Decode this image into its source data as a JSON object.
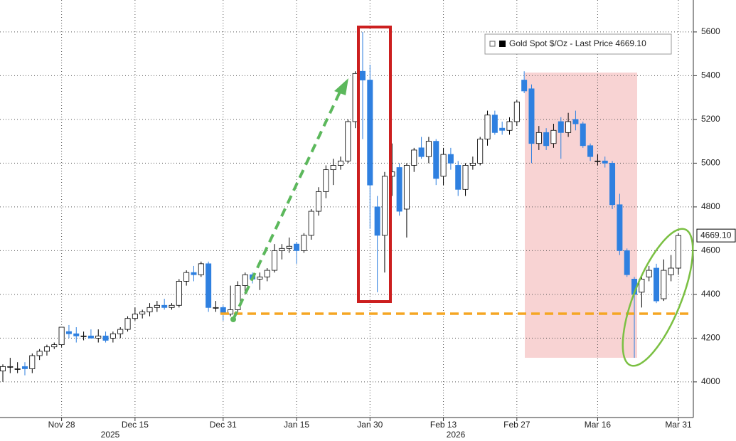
{
  "chart_data": {
    "type": "candlestick",
    "legend_label": "Gold Spot $/Oz - Last Price 4669.10",
    "last_price_label": "4669.10",
    "categories": [
      null,
      null,
      null,
      null,
      null,
      null,
      null,
      null,
      "Nov 28",
      null,
      null,
      null,
      null,
      null,
      null,
      null,
      null,
      null,
      "Dec 15",
      null,
      null,
      null,
      null,
      null,
      null,
      null,
      null,
      null,
      null,
      null,
      "Dec 31",
      null,
      null,
      null,
      null,
      null,
      null,
      null,
      null,
      null,
      "Jan 15",
      null,
      null,
      null,
      null,
      null,
      null,
      null,
      null,
      null,
      "Jan 30",
      null,
      null,
      null,
      null,
      null,
      null,
      null,
      null,
      null,
      "Feb 13",
      null,
      null,
      null,
      null,
      null,
      null,
      null,
      null,
      null,
      "Feb 27",
      null,
      null,
      null,
      null,
      null,
      null,
      null,
      null,
      null,
      null,
      "Mar 16",
      null,
      null,
      null,
      null,
      null,
      null,
      null,
      null,
      null,
      null,
      "Mar 31"
    ],
    "year_labels": [
      "2025",
      "2026"
    ],
    "up_color": "#ffffff",
    "down_color": "#2f80e0",
    "outline_color": "#000000",
    "series": [
      {
        "name": "Gold Spot $/Oz",
        "open": [
          4050,
          4070,
          4060,
          4070,
          4060,
          4120,
          4140,
          4160,
          4170,
          4230,
          4220,
          4210,
          4210,
          4200,
          4210,
          4200,
          4220,
          4240,
          4290,
          4310,
          4320,
          4340,
          4350,
          4340,
          4350,
          4460,
          4500,
          4490,
          4540,
          4340,
          4340,
          4310,
          4330,
          4440,
          4490,
          4470,
          4480,
          4510,
          4600,
          4610,
          4630,
          4600,
          4670,
          4780,
          4870,
          4970,
          4990,
          5010,
          5190,
          5420,
          5380,
          4800,
          4670,
          4940,
          4980,
          4790,
          4990,
          5070,
          5030,
          5100,
          4940,
          5040,
          4990,
          4880,
          4990,
          5000,
          5110,
          5220,
          5160,
          5150,
          5190,
          5380,
          5340,
          5090,
          5140,
          5090,
          5190,
          5140,
          5200,
          5180,
          5080,
          5010,
          5010,
          5000,
          4810,
          4600,
          4470,
          4410,
          4480,
          4520,
          4380,
          4490,
          4520
        ],
        "high": [
          4080,
          4110,
          4090,
          4090,
          4130,
          4150,
          4170,
          4180,
          4250,
          4260,
          4250,
          4230,
          4240,
          4240,
          4230,
          4230,
          4250,
          4300,
          4340,
          4330,
          4360,
          4370,
          4380,
          4360,
          4470,
          4510,
          4530,
          4550,
          4550,
          4370,
          4350,
          4440,
          4460,
          4500,
          4500,
          4500,
          4520,
          4630,
          4630,
          4660,
          4640,
          4680,
          4790,
          4890,
          4990,
          5020,
          5030,
          5200,
          5420,
          5600,
          5450,
          4850,
          4960,
          5090,
          5000,
          5000,
          5070,
          5120,
          5120,
          5110,
          5070,
          5070,
          5010,
          5000,
          5030,
          5120,
          5240,
          5240,
          5190,
          5210,
          5290,
          5420,
          5360,
          5170,
          5160,
          5180,
          5210,
          5230,
          5240,
          5190,
          5090,
          5040,
          5030,
          5010,
          4860,
          4610,
          4480,
          4480,
          4530,
          4540,
          4560,
          4580,
          4680
        ],
        "low": [
          4000,
          4040,
          4040,
          4030,
          4040,
          4100,
          4120,
          4150,
          4160,
          4200,
          4180,
          4190,
          4200,
          4180,
          4180,
          4180,
          4200,
          4230,
          4280,
          4290,
          4300,
          4320,
          4330,
          4330,
          4340,
          4440,
          4460,
          4480,
          4320,
          4320,
          4280,
          4300,
          4320,
          4400,
          4450,
          4420,
          4460,
          4500,
          4560,
          4590,
          4540,
          4590,
          4650,
          4760,
          4840,
          4900,
          4970,
          5000,
          5160,
          5110,
          4700,
          4410,
          4500,
          4850,
          4760,
          4660,
          4960,
          5020,
          5000,
          4900,
          4900,
          4970,
          4850,
          4850,
          4970,
          4990,
          5080,
          5130,
          5130,
          5130,
          5170,
          5320,
          5000,
          5060,
          5060,
          5070,
          5020,
          5120,
          5150,
          5070,
          5010,
          4990,
          4980,
          4790,
          4580,
          4480,
          4110,
          4340,
          4460,
          4360,
          4370,
          4460,
          4490
        ],
        "close": [
          4070,
          4070,
          4060,
          4060,
          4120,
          4140,
          4160,
          4170,
          4250,
          4220,
          4210,
          4210,
          4200,
          4210,
          4190,
          4220,
          4240,
          4290,
          4310,
          4320,
          4340,
          4350,
          4340,
          4350,
          4460,
          4500,
          4490,
          4540,
          4340,
          4340,
          4310,
          4330,
          4440,
          4490,
          4470,
          4480,
          4510,
          4600,
          4610,
          4620,
          4600,
          4670,
          4780,
          4870,
          4970,
          4990,
          5010,
          5190,
          5410,
          5380,
          4900,
          4670,
          4940,
          4960,
          4780,
          4990,
          5060,
          5030,
          5100,
          4930,
          5040,
          5000,
          4880,
          4990,
          5000,
          5110,
          5220,
          5140,
          5150,
          5190,
          5280,
          5330,
          5090,
          5140,
          5080,
          5150,
          5140,
          5190,
          5180,
          5080,
          5030,
          5010,
          5000,
          4810,
          4600,
          4490,
          4400,
          4470,
          4510,
          4370,
          4510,
          4520,
          4669.1
        ]
      }
    ],
    "ylim": [
      3837,
      5746
    ],
    "yticks": [
      4000,
      4200,
      4400,
      4600,
      4800,
      5000,
      5200,
      5400,
      5600
    ],
    "grid": true
  }
}
